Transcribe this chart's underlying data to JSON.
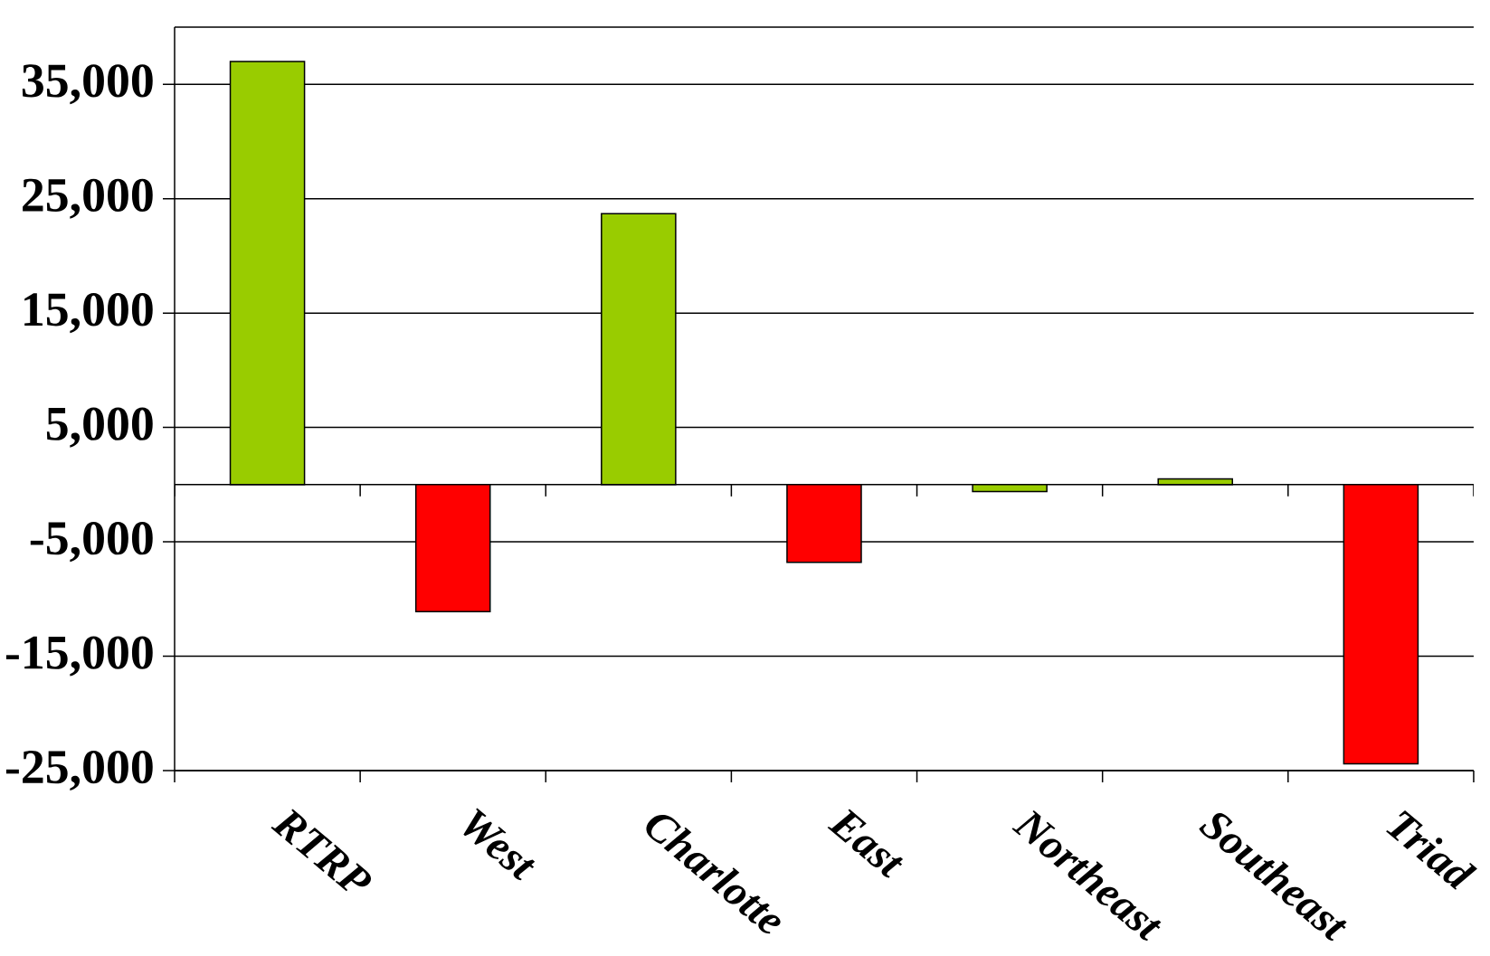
{
  "chart_data": {
    "type": "bar",
    "categories": [
      "RTRP",
      "West",
      "Charlotte",
      "East",
      "Northeast",
      "Southeast",
      "Triad"
    ],
    "values": [
      37000,
      -11100,
      23700,
      -6800,
      -600,
      500,
      -24400
    ],
    "colors": [
      "#99cc00",
      "#ff0000",
      "#99cc00",
      "#ff0000",
      "#99cc00",
      "#99cc00",
      "#ff0000"
    ],
    "ylim": [
      -25000,
      40000
    ],
    "yticks": [
      {
        "value": -25000,
        "label": "-25,000"
      },
      {
        "value": -15000,
        "label": "-15,000"
      },
      {
        "value": -5000,
        "label": "-5,000"
      },
      {
        "value": 5000,
        "label": "5,000"
      },
      {
        "value": 15000,
        "label": "15,000"
      },
      {
        "value": 25000,
        "label": "25,000"
      },
      {
        "value": 35000,
        "label": "35,000"
      }
    ],
    "grid": "y",
    "ref_lines": [
      {
        "axis": "y",
        "value": 0
      }
    ]
  }
}
